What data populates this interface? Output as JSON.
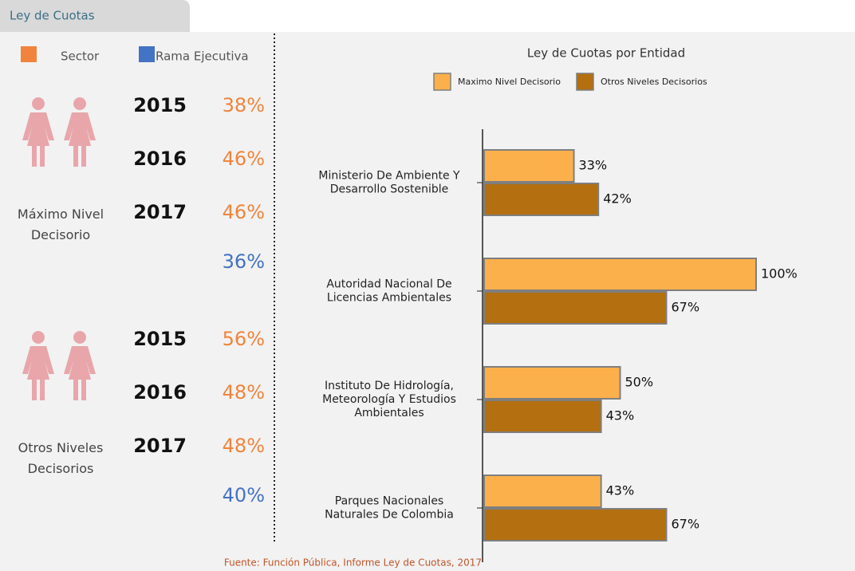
{
  "tab": "Ley de Cuotas",
  "legend": {
    "sector": "Sector",
    "rama": "Rama Ejecutiva"
  },
  "groups": [
    {
      "label": "Máximo Nivel\nDecisorio",
      "years": [
        {
          "year": "2015",
          "value": "38%"
        },
        {
          "year": "2016",
          "value": "46%"
        },
        {
          "year": "2017",
          "value": "46%"
        }
      ],
      "rama": "36%"
    },
    {
      "label": "Otros Niveles\nDecisorios",
      "years": [
        {
          "year": "2015",
          "value": "56%"
        },
        {
          "year": "2016",
          "value": "48%"
        },
        {
          "year": "2017",
          "value": "48%"
        }
      ],
      "rama": "40%"
    }
  ],
  "source": "Fuente: Función Pública, Informe Ley de Cuotas, 2017",
  "chart_data": {
    "type": "hbar",
    "title": "Ley de Cuotas por Entidad",
    "categories": [
      "Ministerio De Ambiente Y\nDesarrollo Sostenible",
      "Autoridad Nacional De\nLicencias Ambientales",
      "Instituto De Hidrología,\nMeteorología Y Estudios\nAmbientales",
      "Parques Nacionales\nNaturales De Colombia"
    ],
    "series": [
      {
        "name": "Maximo Nivel Decisorio",
        "color": "#fbb04c",
        "values": [
          33,
          100,
          50,
          43
        ],
        "value_labels": [
          "33%",
          "100%",
          "50%",
          "43%"
        ]
      },
      {
        "name": "Otros Niveles Decisorios",
        "color": "#b36f10",
        "values": [
          42,
          67,
          43,
          67
        ],
        "value_labels": [
          "42%",
          "67%",
          "43%",
          "67%"
        ]
      }
    ],
    "xlim": [
      0,
      100
    ]
  }
}
